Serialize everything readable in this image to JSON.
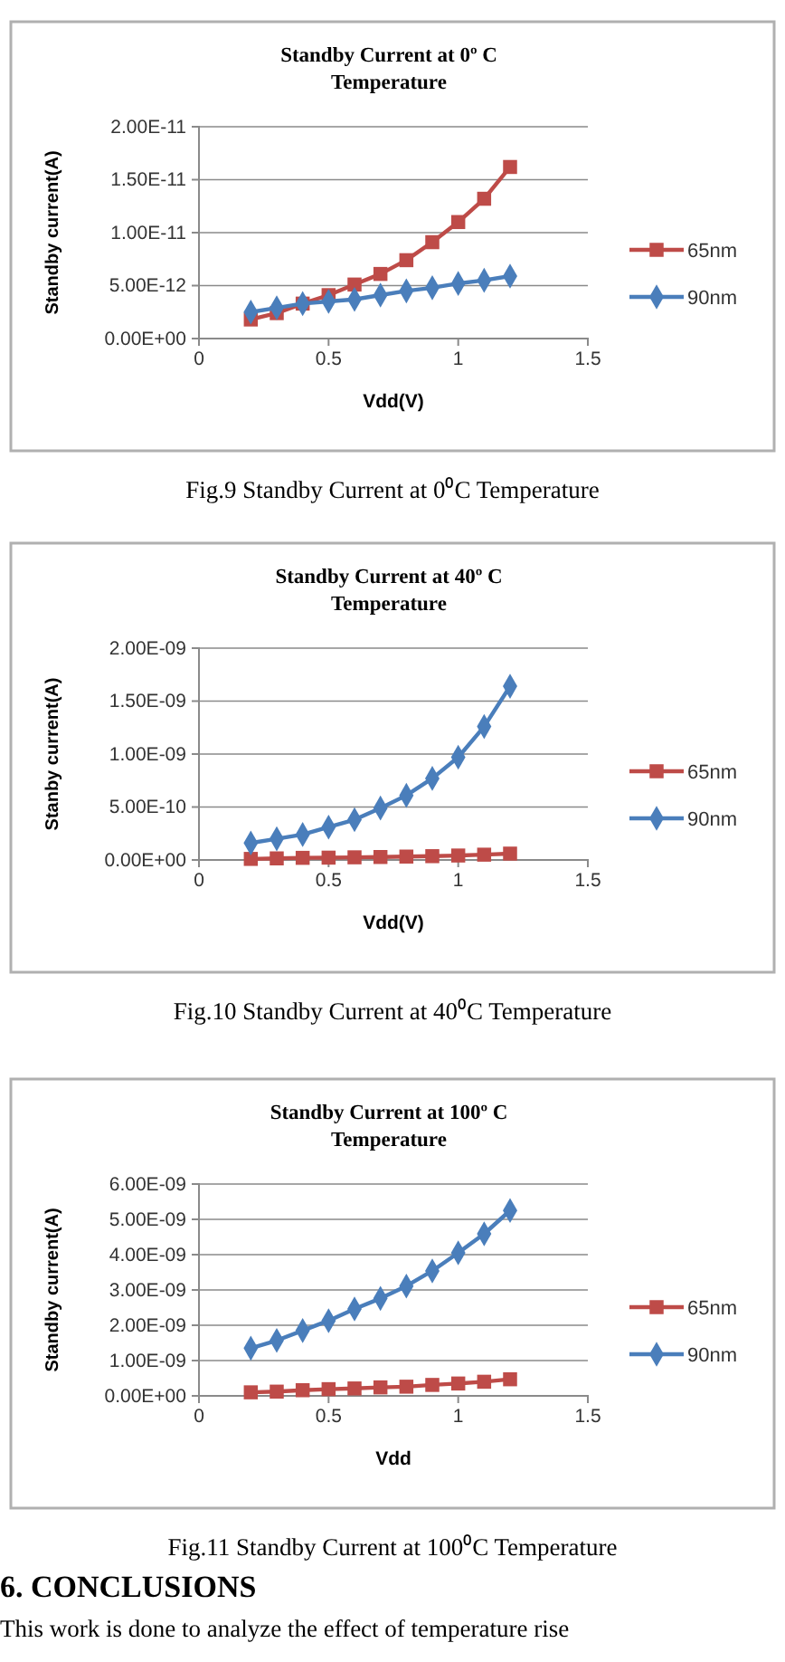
{
  "chart_data": [
    {
      "type": "line",
      "title": "Standby Current at 0º C Temperature",
      "xlabel": "Vdd(V)",
      "ylabel": "Standby current(A)",
      "x": [
        0.2,
        0.3,
        0.4,
        0.5,
        0.6,
        0.7,
        0.8,
        0.9,
        1.0,
        1.1,
        1.2
      ],
      "xlim": [
        0,
        1.5
      ],
      "xticks": [
        0,
        0.5,
        1,
        1.5
      ],
      "ylim": [
        0,
        2e-11
      ],
      "yticks": [
        {
          "value": 0,
          "label": "0.00E+00"
        },
        {
          "value": 5e-12,
          "label": "5.00E-12"
        },
        {
          "value": 1e-11,
          "label": "1.00E-11"
        },
        {
          "value": 1.5e-11,
          "label": "1.50E-11"
        },
        {
          "value": 2e-11,
          "label": "2.00E-11"
        }
      ],
      "grid": "y",
      "legend": "right",
      "series": [
        {
          "name": "65nm",
          "color": "#be4b48",
          "marker": "square",
          "values": [
            1.8e-12,
            2.4e-12,
            3.3e-12,
            4.1e-12,
            5.1e-12,
            6.1e-12,
            7.4e-12,
            9.1e-12,
            1.1e-11,
            1.32e-11,
            1.62e-11
          ]
        },
        {
          "name": "90nm",
          "color": "#4a7ebb",
          "marker": "diamond",
          "values": [
            2.5e-12,
            2.9e-12,
            3.3e-12,
            3.5e-12,
            3.7e-12,
            4.1e-12,
            4.5e-12,
            4.8e-12,
            5.2e-12,
            5.5e-12,
            5.9e-12
          ]
        }
      ],
      "annotations": [
        "Fig.9 Standby Current at 0⁰C Temperature"
      ]
    },
    {
      "type": "line",
      "title": "Standby Current at 40º C Temperature",
      "xlabel": "Vdd(V)",
      "ylabel": "Stanby current(A)",
      "x": [
        0.2,
        0.3,
        0.4,
        0.5,
        0.6,
        0.7,
        0.8,
        0.9,
        1.0,
        1.1,
        1.2
      ],
      "xlim": [
        0,
        1.5
      ],
      "xticks": [
        0,
        0.5,
        1,
        1.5
      ],
      "ylim": [
        0,
        2e-09
      ],
      "yticks": [
        {
          "value": 0,
          "label": "0.00E+00"
        },
        {
          "value": 5e-10,
          "label": "5.00E-10"
        },
        {
          "value": 1e-09,
          "label": "1.00E-09"
        },
        {
          "value": 1.5e-09,
          "label": "1.50E-09"
        },
        {
          "value": 2e-09,
          "label": "2.00E-09"
        }
      ],
      "grid": "y",
      "legend": "right",
      "series": [
        {
          "name": "65nm",
          "color": "#be4b48",
          "marker": "square",
          "values": [
            1e-11,
            1.5e-11,
            2e-11,
            2.2e-11,
            2.5e-11,
            2.8e-11,
            3.2e-11,
            3.6e-11,
            4.2e-11,
            5e-11,
            6e-11
          ]
        },
        {
          "name": "90nm",
          "color": "#4a7ebb",
          "marker": "diamond",
          "values": [
            1.6e-10,
            2e-10,
            2.4e-10,
            3.1e-10,
            3.8e-10,
            4.9e-10,
            6.1e-10,
            7.7e-10,
            9.7e-10,
            1.26e-09,
            1.64e-09
          ]
        }
      ],
      "annotations": [
        "Fig.10 Standby Current at 40⁰C Temperature"
      ]
    },
    {
      "type": "line",
      "title": "Standby Current at 100º C Temperature",
      "xlabel": "Vdd",
      "ylabel": "Standby current(A)",
      "x": [
        0.2,
        0.3,
        0.4,
        0.5,
        0.6,
        0.7,
        0.8,
        0.9,
        1.0,
        1.1,
        1.2
      ],
      "xlim": [
        0,
        1.5
      ],
      "xticks": [
        0,
        0.5,
        1,
        1.5
      ],
      "ylim": [
        0,
        6e-09
      ],
      "yticks": [
        {
          "value": 0,
          "label": "0.00E+00"
        },
        {
          "value": 1e-09,
          "label": "1.00E-09"
        },
        {
          "value": 2e-09,
          "label": "2.00E-09"
        },
        {
          "value": 3e-09,
          "label": "3.00E-09"
        },
        {
          "value": 4e-09,
          "label": "4.00E-09"
        },
        {
          "value": 5e-09,
          "label": "5.00E-09"
        },
        {
          "value": 6e-09,
          "label": "6.00E-09"
        }
      ],
      "grid": "y",
      "legend": "right",
      "series": [
        {
          "name": "65nm",
          "color": "#be4b48",
          "marker": "square",
          "values": [
            1e-10,
            1.2e-10,
            1.6e-10,
            1.9e-10,
            2.1e-10,
            2.4e-10,
            2.6e-10,
            3.1e-10,
            3.5e-10,
            4e-10,
            4.7e-10
          ]
        },
        {
          "name": "90nm",
          "color": "#4a7ebb",
          "marker": "diamond",
          "values": [
            1.35e-09,
            1.57e-09,
            1.85e-09,
            2.13e-09,
            2.46e-09,
            2.76e-09,
            3.11e-09,
            3.54e-09,
            4.05e-09,
            4.59e-09,
            5.25e-09
          ]
        }
      ],
      "annotations": [
        "Fig.11 Standby Current at 100⁰C Temperature",
        "6.  CONCLUSIONS",
        "This work is done to analyze the effect of temperature rise"
      ]
    }
  ]
}
